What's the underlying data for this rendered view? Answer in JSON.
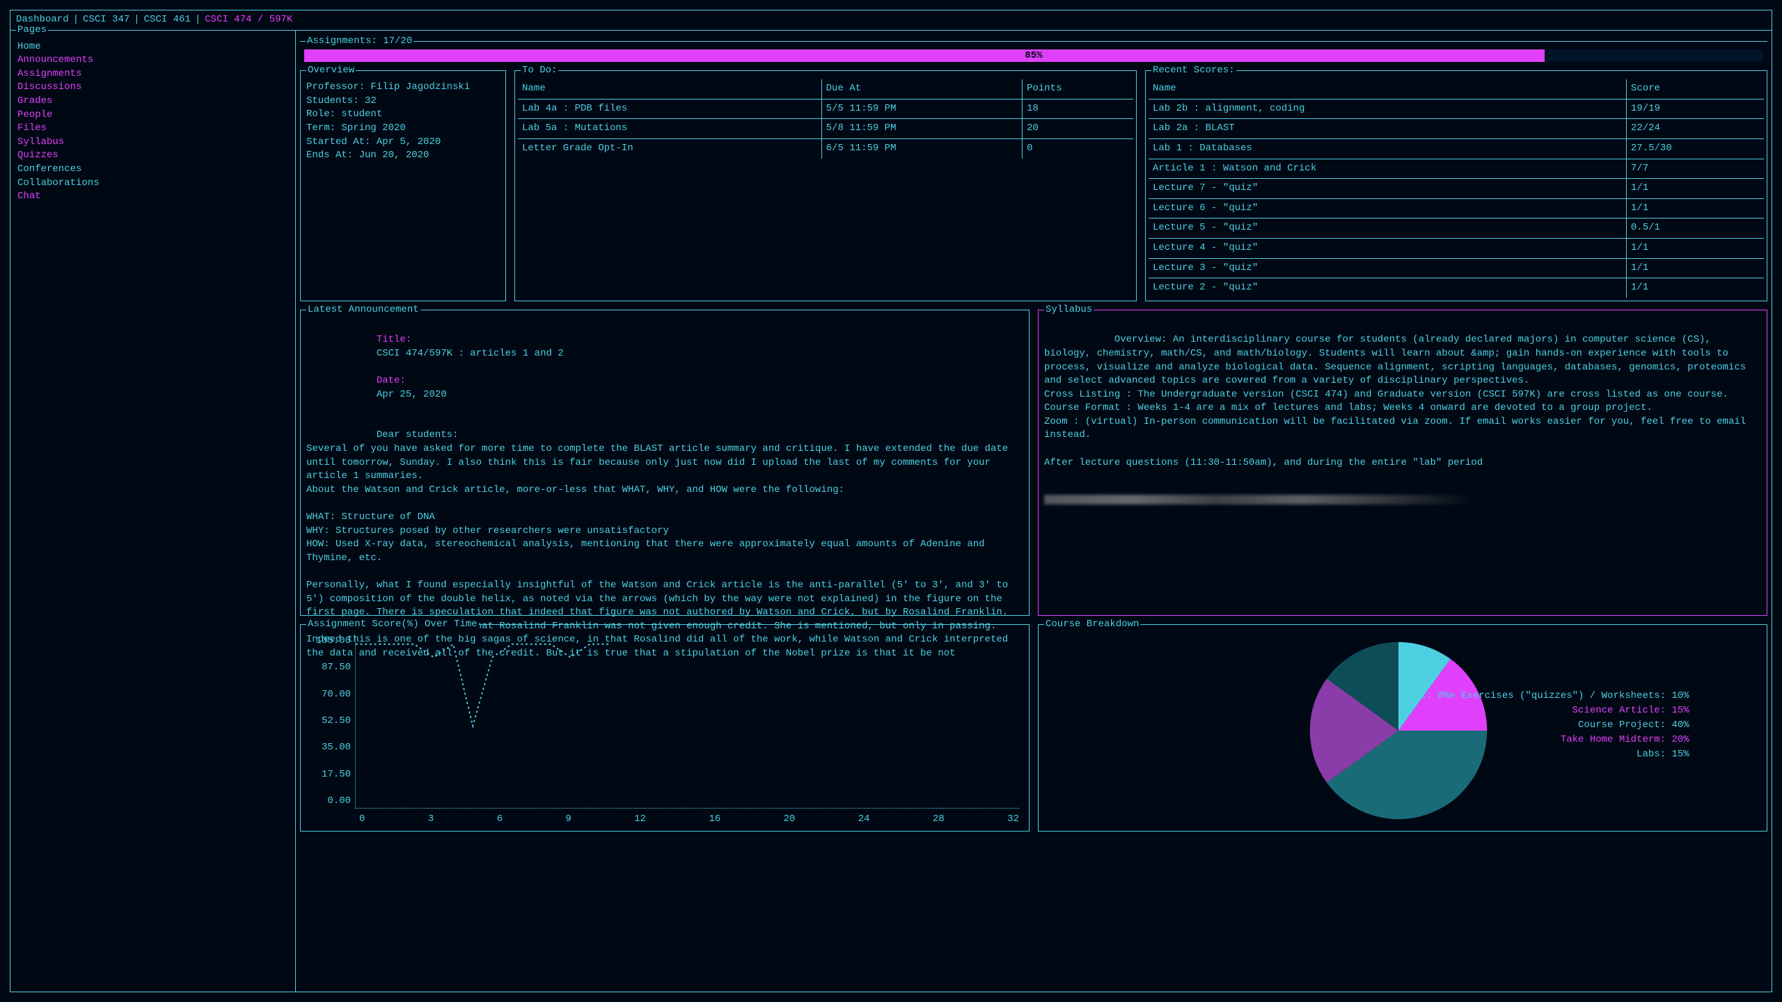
{
  "colors": {
    "background": "#000814",
    "foreground": "#4dd0e1",
    "accent": "#e040fb",
    "teal_dark": "#0d5d6b",
    "purple_dark": "#6a2d8a"
  },
  "breadcrumb": {
    "items": [
      "Dashboard",
      "CSCI 347",
      "CSCI 461",
      "CSCI 474 / 597K"
    ],
    "active_index": 3
  },
  "sidebar": {
    "title": "Pages",
    "items": [
      {
        "label": "Home",
        "accent": false
      },
      {
        "label": "Announcements",
        "accent": true
      },
      {
        "label": "Assignments",
        "accent": true
      },
      {
        "label": "Discussions",
        "accent": true
      },
      {
        "label": "Grades",
        "accent": true
      },
      {
        "label": "People",
        "accent": true
      },
      {
        "label": "Files",
        "accent": true
      },
      {
        "label": "Syllabus",
        "accent": true
      },
      {
        "label": "Quizzes",
        "accent": true
      },
      {
        "label": "Conferences",
        "accent": false
      },
      {
        "label": "Collaborations",
        "accent": false
      },
      {
        "label": "Chat",
        "accent": true
      }
    ]
  },
  "assignments_header": {
    "label": "Assignments: 17/20",
    "progress_pct": 85,
    "progress_label": "85%"
  },
  "overview": {
    "title": "Overview",
    "lines": [
      "Professor: Filip Jagodzinski",
      "Students: 32",
      "Role: student",
      "Term: Spring 2020",
      "Started At: Apr 5, 2020",
      "Ends At: Jun 20, 2020"
    ]
  },
  "todo": {
    "title": "To Do:",
    "columns": [
      "Name",
      "Due At",
      "Points"
    ],
    "rows": [
      [
        "Lab 4a : PDB files",
        "5/5 11:59 PM",
        "18"
      ],
      [
        "Lab 5a : Mutations",
        "5/8 11:59 PM",
        "20"
      ],
      [
        "Letter Grade Opt-In",
        "6/5 11:59 PM",
        "0"
      ]
    ]
  },
  "recent": {
    "title": "Recent Scores:",
    "columns": [
      "Name",
      "Score"
    ],
    "rows": [
      [
        "Lab 2b : alignment, coding",
        "19/19"
      ],
      [
        "Lab 2a : BLAST",
        "22/24"
      ],
      [
        "Lab 1 : Databases",
        "27.5/30"
      ],
      [
        "Article 1 : Watson and Crick",
        "7/7"
      ],
      [
        "Lecture 7 - \"quiz\"",
        "1/1"
      ],
      [
        "Lecture 6 - \"quiz\"",
        "1/1"
      ],
      [
        "Lecture 5 - \"quiz\"",
        "0.5/1"
      ],
      [
        "Lecture 4 - \"quiz\"",
        "1/1"
      ],
      [
        "Lecture 3 - \"quiz\"",
        "1/1"
      ],
      [
        "Lecture  2 - \"quiz\"",
        "1/1"
      ]
    ]
  },
  "announcement": {
    "title": "Latest Announcement",
    "heading_title_label": "Title:",
    "heading_title": "CSCI 474/597K : articles 1 and 2",
    "heading_date_label": "Date:",
    "heading_date": "Apr 25, 2020",
    "body": "Dear students:\nSeveral of you have asked for more time to complete the BLAST article summary and critique. I have extended the due date until tomorrow, Sunday. I also think this is fair because only just now did I upload the last of my comments for your article 1 summaries.\nAbout the Watson and Crick article, more-or-less that WHAT, WHY, and HOW were the following:\n\nWHAT: Structure of DNA\nWHY: Structures posed by other researchers were unsatisfactory\nHOW: Used X-ray data, stereochemical analysis, mentioning that there were approximately equal amounts of Adenine and Thymine, etc.\n\nPersonally, what I found especially insightful of the Watson and Crick article is the anti-parallel (5' to 3', and 3' to 5') composition of the double helix, as noted via the arrows (which by the way were not explained) in the figure on the first page. There is speculation that indeed that figure was not authored by Watson and Crick, but by Rosalind Franklin. And some of you pointed out that Rosalind Franklin was not given enough credit. She is mentioned, but only in passing. Indeed this is one of the big sagas of science, in that Rosalind did all of the work, while Watson and Crick interpreted the data and received all of the credit. But it is true that a stipulation of the Nobel prize is that it be not"
  },
  "syllabus": {
    "title": "Syllabus",
    "body": "Overview: An interdisciplinary course for students (already declared majors) in computer science (CS), biology, chemistry, math/CS, and math/biology. Students will learn about &amp; gain hands-on experience with tools to process, visualize and analyze biological data. Sequence alignment, scripting languages, databases, genomics, proteomics and select advanced topics are covered from a variety of disciplinary perspectives.\nCross Listing : The Undergraduate version (CSCI 474) and Graduate version (CSCI 597K) are cross listed as one course.\nCourse Format : Weeks 1-4 are a mix of lectures and labs; Weeks 4 onward are devoted to a group project.\nZoom : (virtual) In-person communication will be facilitated via zoom. If email works easier for you, feel free to email instead.\n\nAfter lecture questions (11:30-11:50am), and during the entire \"lab\" period"
  },
  "score_chart": {
    "title": "Assignment Score(%) Over Time",
    "type": "line",
    "y_ticks": [
      "105.00",
      "87.50",
      "70.00",
      "52.50",
      "35.00",
      "17.50",
      "0.00"
    ],
    "x_ticks": [
      "0",
      "3",
      "6",
      "9",
      "12",
      "16",
      "20",
      "24",
      "28",
      "32"
    ],
    "ylim": [
      0,
      105
    ],
    "xlim": [
      0,
      34
    ],
    "line_color": "#4dd0e1",
    "line_style": "dotted",
    "points": [
      {
        "x": 0,
        "y": 100
      },
      {
        "x": 1,
        "y": 100
      },
      {
        "x": 2,
        "y": 100
      },
      {
        "x": 3,
        "y": 100
      },
      {
        "x": 4,
        "y": 92
      },
      {
        "x": 5,
        "y": 100
      },
      {
        "x": 6,
        "y": 50
      },
      {
        "x": 7,
        "y": 92
      },
      {
        "x": 8,
        "y": 100
      },
      {
        "x": 9,
        "y": 100
      },
      {
        "x": 10,
        "y": 100
      },
      {
        "x": 11,
        "y": 92
      },
      {
        "x": 12,
        "y": 100
      },
      {
        "x": 13,
        "y": 100
      }
    ]
  },
  "breakdown": {
    "title": "Course Breakdown",
    "type": "pie",
    "slices": [
      {
        "label": "Misc: 0%e Exercises (\"quizzes\") / Worksheets: 10%",
        "value": 10,
        "color": "#4dd0e1"
      },
      {
        "label": "Science Article: 15%",
        "value": 15,
        "color": "#e040fb"
      },
      {
        "label": "Course Project: 40%",
        "value": 40,
        "color": "#1a6b78"
      },
      {
        "label": "Take Home Midterm: 20%",
        "value": 20,
        "color": "#8a3da8"
      },
      {
        "label": "Labs: 15%",
        "value": 15,
        "color": "#0d4d58"
      }
    ]
  }
}
